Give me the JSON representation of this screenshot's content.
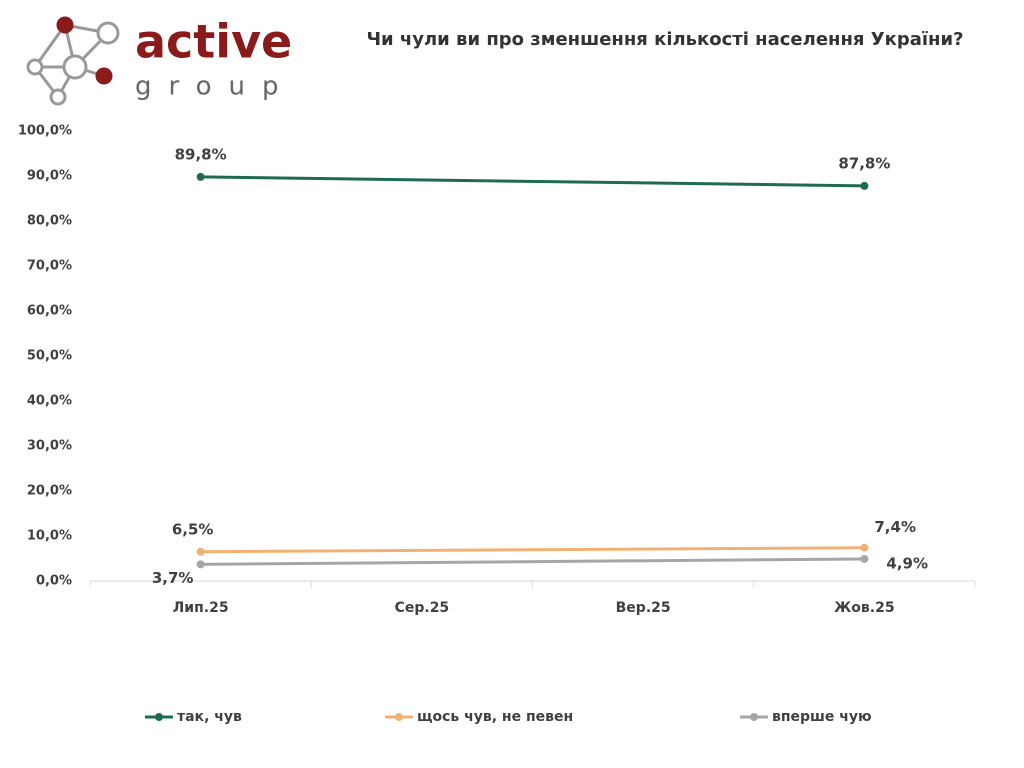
{
  "logo": {
    "name": "active",
    "sub": "group"
  },
  "chart_data": {
    "type": "line",
    "title": "Чи чули ви про зменшення кількості населення України?",
    "categories": [
      "Лип.25",
      "Сер.25",
      "Вер.25",
      "Жов.25"
    ],
    "series": [
      {
        "name": "так, чув",
        "color": "#1e6b50",
        "values": [
          89.8,
          null,
          null,
          87.8
        ],
        "value_labels": [
          "89,8%",
          null,
          null,
          "87,8%"
        ]
      },
      {
        "name": "щось чув, не певен",
        "color": "#f2b173",
        "values": [
          6.5,
          null,
          null,
          7.4
        ],
        "value_labels": [
          "6,5%",
          null,
          null,
          "7,4%"
        ]
      },
      {
        "name": "вперше чую",
        "color": "#a6a6a6",
        "values": [
          3.7,
          null,
          null,
          4.9
        ],
        "value_labels": [
          "3,7%",
          null,
          null,
          "4,9%"
        ]
      }
    ],
    "span_gaps": true,
    "ylim": [
      0,
      100
    ],
    "yticks": [
      {
        "value": 0,
        "label": "0,0%"
      },
      {
        "value": 10,
        "label": "10,0%"
      },
      {
        "value": 20,
        "label": "20,0%"
      },
      {
        "value": 30,
        "label": "30,0%"
      },
      {
        "value": 40,
        "label": "40,0%"
      },
      {
        "value": 50,
        "label": "50,0%"
      },
      {
        "value": 60,
        "label": "60,0%"
      },
      {
        "value": 70,
        "label": "70,0%"
      },
      {
        "value": 80,
        "label": "80,0%"
      },
      {
        "value": 90,
        "label": "90,0%"
      },
      {
        "value": 100,
        "label": "100,0%"
      }
    ],
    "grid": false,
    "legend": "bottom"
  }
}
